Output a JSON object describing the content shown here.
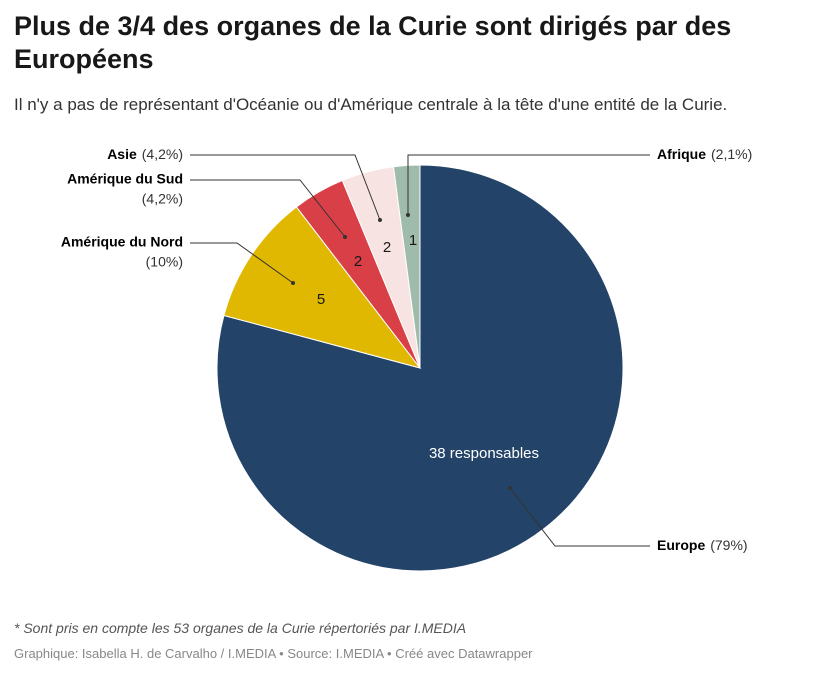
{
  "chart_data": {
    "type": "pie",
    "title": "Plus de 3/4 des organes de la Curie sont dirigés par des Européens",
    "subtitle": "Il n'y a pas de représentant d'Océanie ou d'Amérique centrale à la tête d'une entité de la Curie.",
    "note": "* Sont pris en compte les 53 organes de la Curie répertoriés par I.MEDIA",
    "source": "Graphique: Isabella H. de Carvalho / I.MEDIA • Source: I.MEDIA • Créé avec Datawrapper",
    "categories": [
      "Europe",
      "Amérique du Nord",
      "Amérique du Sud",
      "Asie",
      "Afrique"
    ],
    "values": [
      38,
      5,
      2,
      2,
      1
    ],
    "value_labels": [
      "38 responsables",
      "5",
      "2",
      "2",
      "1"
    ],
    "shares": [
      79,
      10,
      4.2,
      4.2,
      2.1
    ],
    "share_labels": [
      "(79%)",
      "(10%)",
      "(4,2%)",
      "(4,2%)",
      "(2,1%)"
    ],
    "colors": [
      "#234369",
      "#e0b802",
      "#d93f46",
      "#f7e4e2",
      "#9fbbab"
    ]
  }
}
